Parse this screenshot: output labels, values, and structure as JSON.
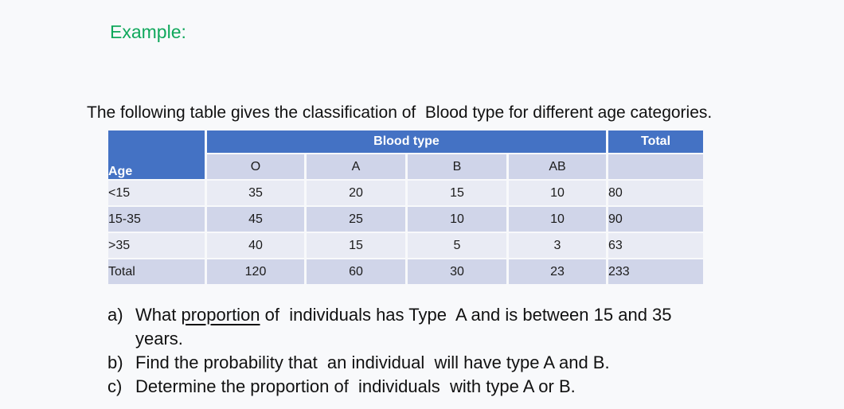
{
  "page": {
    "background": "#f8f9fb"
  },
  "header": {
    "example_label": "Example:",
    "example_color": "#10a85c"
  },
  "intro": {
    "text": "The following table gives the classification of  Blood type for different age categories."
  },
  "table": {
    "corner_label": "Age",
    "group_header": "Blood type",
    "total_header": "Total",
    "columns": [
      "O",
      "A",
      "B",
      "AB"
    ],
    "rows": [
      {
        "label": "<15",
        "values": [
          "35",
          "20",
          "15",
          "10"
        ],
        "total": "80"
      },
      {
        "label": "15-35",
        "values": [
          "45",
          "25",
          "10",
          "10"
        ],
        "total": "90"
      },
      {
        "label": ">35",
        "values": [
          "40",
          "15",
          "5",
          "3"
        ],
        "total": "63"
      },
      {
        "label": "Total",
        "values": [
          "120",
          "60",
          "30",
          "23"
        ],
        "total": "233"
      }
    ],
    "colors": {
      "header_blue": "#4472c4",
      "subheader": "#cfd4e9",
      "row_light": "#e9ebf4",
      "row_dark": "#d0d5e9"
    }
  },
  "questions": {
    "a": {
      "prefix": "a)",
      "pre": "What ",
      "underlined": "proportion",
      "post": " of  individuals has Type  A and is between 15 and 35",
      "line2": "years."
    },
    "b": {
      "prefix": "b)",
      "text": "Find the probability that  an individual  will have type A and B."
    },
    "c": {
      "prefix": "c)",
      "text": "Determine the proportion of  individuals  with type A or B."
    }
  }
}
